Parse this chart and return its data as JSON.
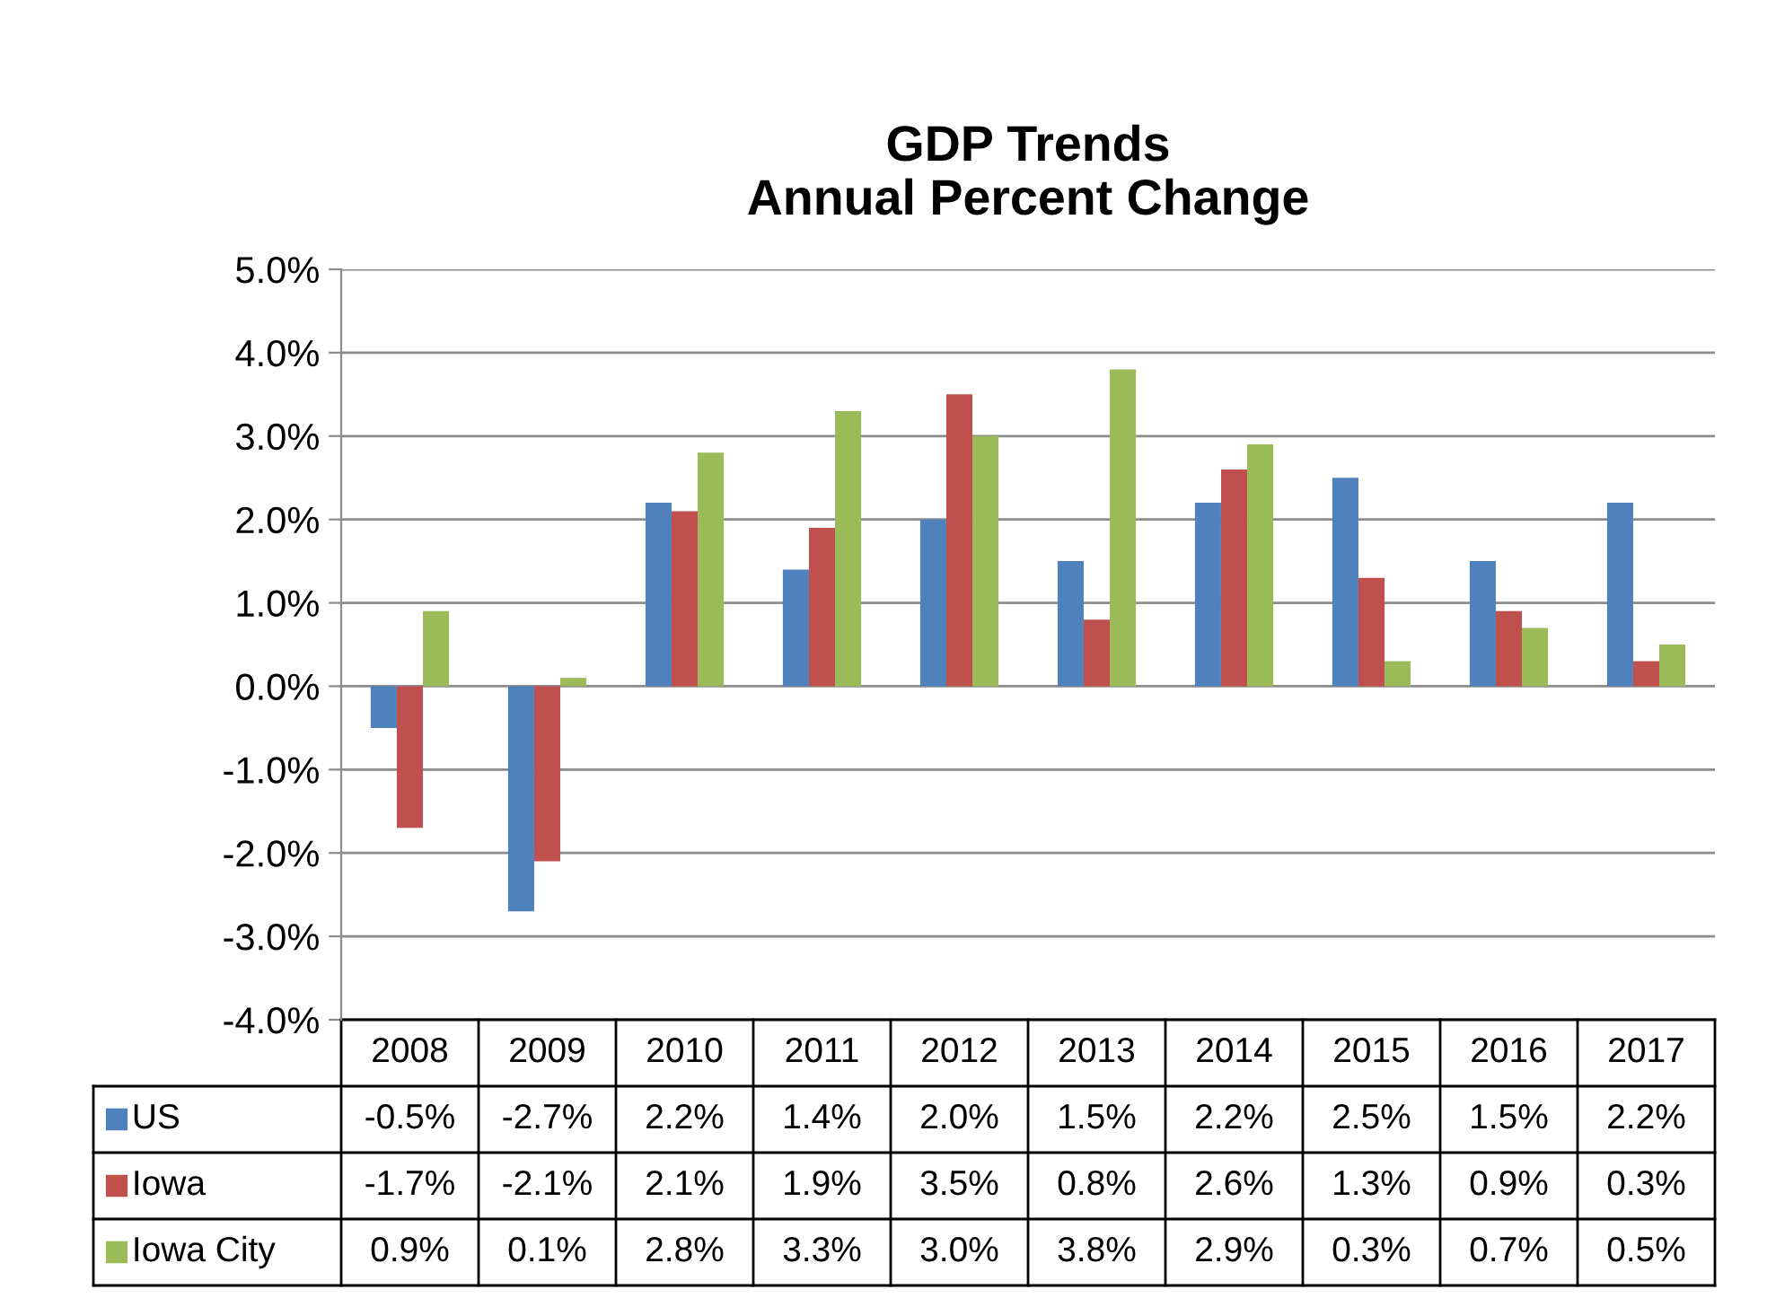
{
  "chart_data": {
    "type": "bar",
    "title": "GDP Trends\nAnnual Percent Change",
    "categories": [
      "2008",
      "2009",
      "2010",
      "2011",
      "2012",
      "2013",
      "2014",
      "2015",
      "2016",
      "2017"
    ],
    "series": [
      {
        "name": "US",
        "color": "#4f81bd",
        "values": [
          -0.5,
          -2.7,
          2.2,
          1.4,
          2.0,
          1.5,
          2.2,
          2.5,
          1.5,
          2.2
        ],
        "value_labels": [
          "-0.5%",
          "-2.7%",
          "2.2%",
          "1.4%",
          "2.0%",
          "1.5%",
          "2.2%",
          "2.5%",
          "1.5%",
          "2.2%"
        ]
      },
      {
        "name": "Iowa",
        "color": "#c0504d",
        "values": [
          -1.7,
          -2.1,
          2.1,
          1.9,
          3.5,
          0.8,
          2.6,
          1.3,
          0.9,
          0.3
        ],
        "value_labels": [
          "-1.7%",
          "-2.1%",
          "2.1%",
          "1.9%",
          "3.5%",
          "0.8%",
          "2.6%",
          "1.3%",
          "0.9%",
          "0.3%"
        ]
      },
      {
        "name": "Iowa City",
        "color": "#9bbb59",
        "values": [
          0.9,
          0.1,
          2.8,
          3.3,
          3.0,
          3.8,
          2.9,
          0.3,
          0.7,
          0.5
        ],
        "value_labels": [
          "0.9%",
          "0.1%",
          "2.8%",
          "3.3%",
          "3.0%",
          "3.8%",
          "2.9%",
          "0.3%",
          "0.7%",
          "0.5%"
        ]
      }
    ],
    "ylim": [
      -4,
      5
    ],
    "yticks": [
      {
        "value": -4,
        "label": "-4.0%"
      },
      {
        "value": -3,
        "label": "-3.0%"
      },
      {
        "value": -2,
        "label": "-2.0%"
      },
      {
        "value": -1,
        "label": "-1.0%"
      },
      {
        "value": 0,
        "label": "0.0%"
      },
      {
        "value": 1,
        "label": "1.0%"
      },
      {
        "value": 2,
        "label": "2.0%"
      },
      {
        "value": 3,
        "label": "3.0%"
      },
      {
        "value": 4,
        "label": "4.0%"
      },
      {
        "value": 5,
        "label": "5.0%"
      }
    ],
    "grid": "y",
    "legend": "bottom left"
  }
}
